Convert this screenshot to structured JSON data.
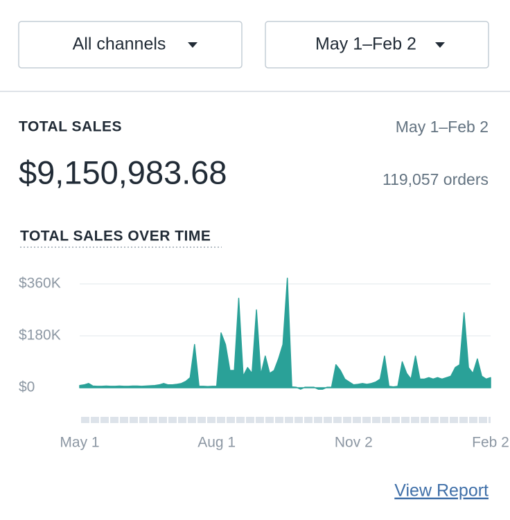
{
  "filters": {
    "channel": "All channels",
    "date_range": "May 1–Feb 2"
  },
  "summary": {
    "label": "TOTAL SALES",
    "date_range": "May 1–Feb 2",
    "total": "$9,150,983.68",
    "orders": "119,057 orders"
  },
  "chart_data": {
    "type": "area",
    "title": "TOTAL SALES OVER TIME",
    "color": "#2aa198",
    "categories": [
      "May 1",
      null,
      null,
      null,
      null,
      null,
      null,
      null,
      null,
      null,
      null,
      null,
      null,
      null,
      null,
      null,
      null,
      null,
      null,
      null,
      null,
      null,
      null,
      null,
      null,
      null,
      null,
      null,
      null,
      null,
      null,
      "Aug 1",
      null,
      null,
      null,
      null,
      null,
      null,
      null,
      null,
      null,
      null,
      null,
      null,
      null,
      null,
      null,
      null,
      null,
      null,
      null,
      null,
      null,
      null,
      null,
      null,
      null,
      null,
      null,
      null,
      null,
      null,
      "Nov 2",
      null,
      null,
      null,
      null,
      null,
      null,
      null,
      null,
      null,
      null,
      null,
      null,
      null,
      null,
      null,
      null,
      null,
      null,
      null,
      null,
      null,
      null,
      null,
      null,
      null,
      null,
      null,
      null,
      null,
      null,
      "Feb 2"
    ],
    "values": [
      8000,
      10000,
      15000,
      6000,
      5000,
      5000,
      6000,
      5000,
      5000,
      6000,
      5000,
      5000,
      6000,
      6000,
      5000,
      6000,
      7000,
      8000,
      10000,
      15000,
      10000,
      10000,
      12000,
      15000,
      22000,
      35000,
      150000,
      5000,
      5000,
      4000,
      5000,
      5000,
      190000,
      150000,
      60000,
      60000,
      310000,
      40000,
      70000,
      50000,
      270000,
      45000,
      110000,
      50000,
      60000,
      100000,
      150000,
      380000,
      3000,
      2000,
      -5000,
      2000,
      2000,
      2000,
      -5000,
      -5000,
      2000,
      2000,
      80000,
      60000,
      30000,
      20000,
      10000,
      12000,
      15000,
      12000,
      15000,
      20000,
      30000,
      110000,
      5000,
      3000,
      5000,
      90000,
      50000,
      30000,
      110000,
      30000,
      30000,
      35000,
      30000,
      35000,
      30000,
      35000,
      40000,
      70000,
      80000,
      260000,
      70000,
      50000,
      100000,
      40000,
      30000,
      35000
    ],
    "ylim": [
      -90000,
      360000
    ],
    "yticks": [
      {
        "value": 0,
        "label": "$0"
      },
      {
        "value": 180000,
        "label": "$180K"
      },
      {
        "value": 360000,
        "label": "$360K"
      }
    ],
    "grid": true
  },
  "link": {
    "view_report": "View Report"
  }
}
